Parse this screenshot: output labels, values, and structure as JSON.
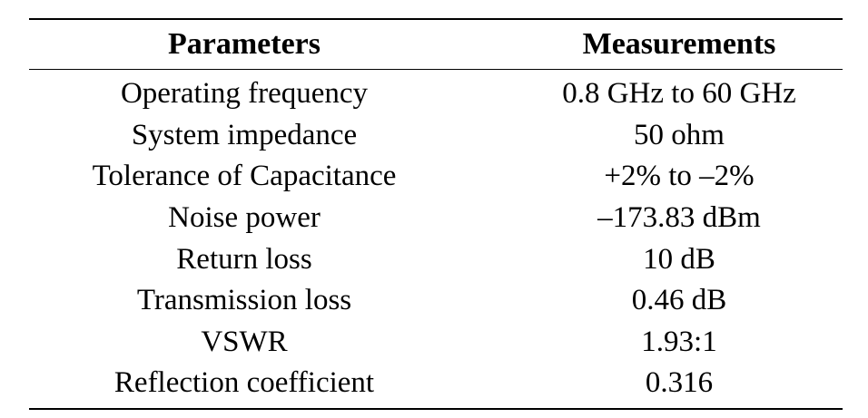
{
  "table": {
    "headers": [
      "Parameters",
      "Measurements"
    ],
    "rows": [
      [
        "Operating frequency",
        "0.8 GHz to 60 GHz"
      ],
      [
        "System impedance",
        "50 ohm"
      ],
      [
        "Tolerance of Capacitance",
        "+2% to –2%"
      ],
      [
        "Noise power",
        "–173.83 dBm"
      ],
      [
        "Return loss",
        "10 dB"
      ],
      [
        "Transmission loss",
        "0.46 dB"
      ],
      [
        "VSWR",
        "1.93:1"
      ],
      [
        "Reflection coefficient",
        "0.316"
      ]
    ]
  }
}
